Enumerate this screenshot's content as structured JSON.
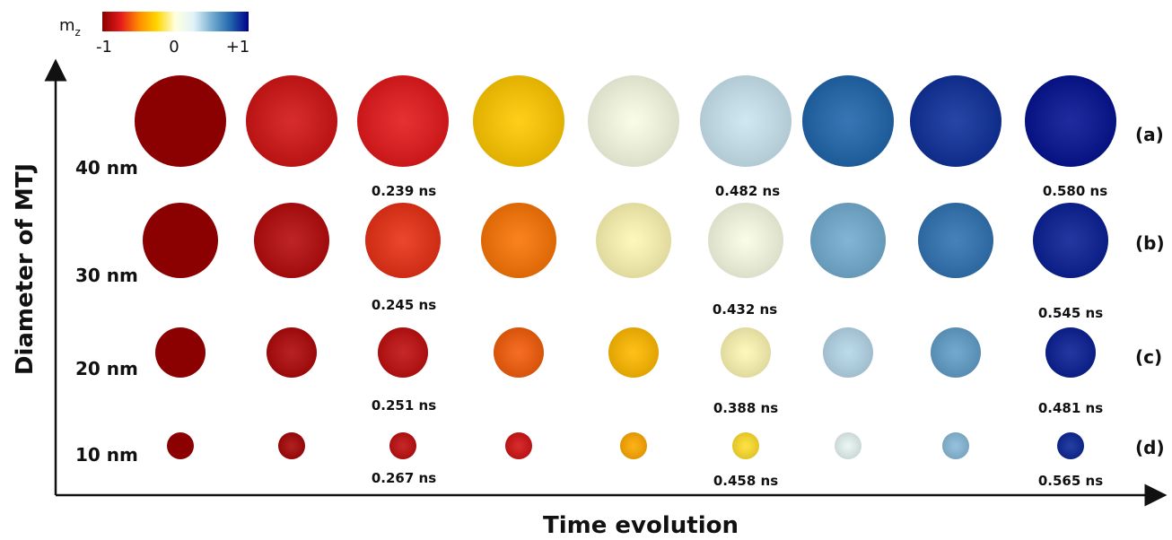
{
  "colorbar": {
    "label_main": "m",
    "label_sub": "z",
    "tick_labels": [
      "-1",
      "0",
      "+1"
    ],
    "colors": [
      "#8b0000",
      "#e41a1c",
      "#ff8c00",
      "#ffd700",
      "#ffffe0",
      "#e0f3f8",
      "#74add1",
      "#2166ac",
      "#00008b"
    ]
  },
  "axes": {
    "y_title": "Diameter of MTJ",
    "x_title": "Time evolution"
  },
  "rows": [
    {
      "diameter_label": "40 nm",
      "panel_label": "(a)",
      "times": [
        "0.239 ns",
        "0.482 ns",
        "0.580 ns"
      ],
      "state_values": [
        -1.0,
        -0.8,
        -0.75,
        -0.3,
        0.05,
        0.3,
        0.75,
        0.88,
        0.95
      ]
    },
    {
      "diameter_label": "30 nm",
      "panel_label": "(b)",
      "times": [
        "0.245 ns",
        "0.432 ns",
        "0.545 ns"
      ],
      "state_values": [
        -1.0,
        -0.88,
        -0.7,
        -0.55,
        -0.05,
        0.05,
        0.5,
        0.7,
        0.92
      ]
    },
    {
      "diameter_label": "20 nm",
      "panel_label": "(c)",
      "times": [
        "0.251 ns",
        "0.388 ns",
        "0.481 ns"
      ],
      "state_values": [
        -1.0,
        -0.9,
        -0.85,
        -0.6,
        -0.35,
        -0.05,
        0.35,
        0.55,
        0.92
      ]
    },
    {
      "diameter_label": "10 nm",
      "panel_label": "(d)",
      "times": [
        "0.267 ns",
        "0.458 ns",
        "0.565 ns"
      ],
      "state_values": [
        -1.0,
        -0.92,
        -0.85,
        -0.8,
        -0.4,
        -0.2,
        0.2,
        0.45,
        0.9
      ]
    }
  ]
}
